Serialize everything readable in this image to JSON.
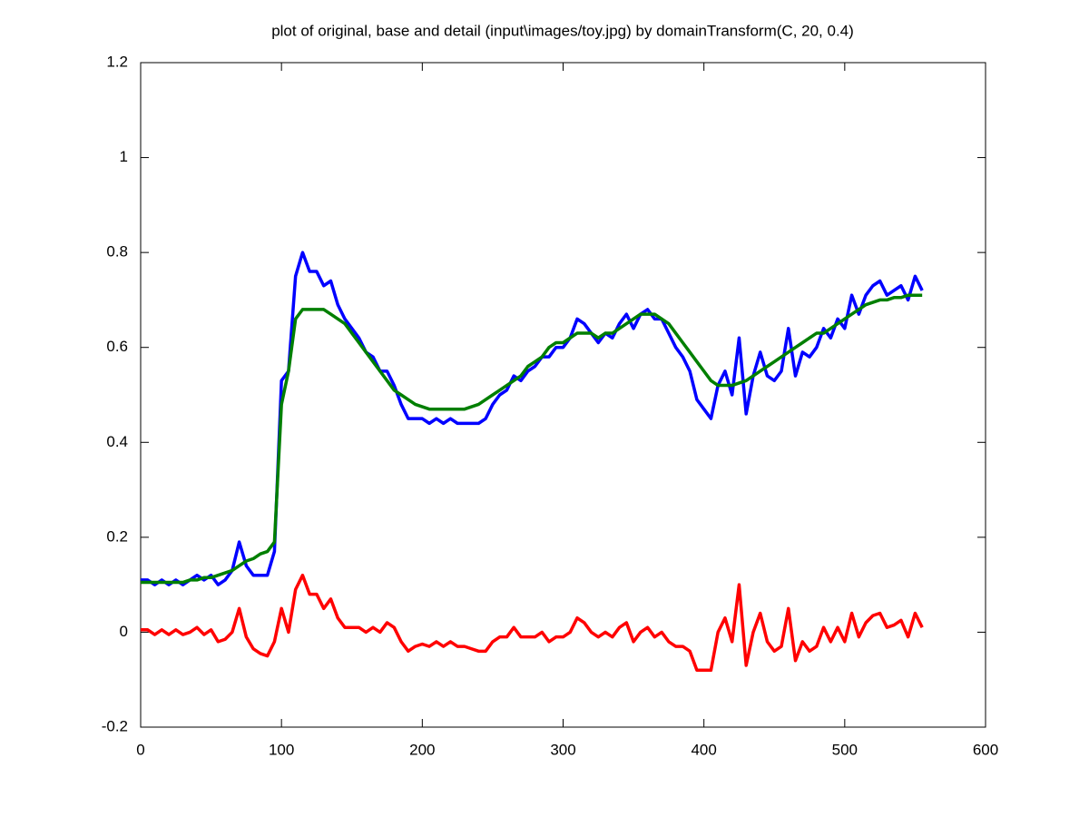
{
  "chart_data": {
    "type": "line",
    "title": "plot of original, base and detail (input\\images/toy.jpg) by domainTransform(C, 20, 0.4)",
    "x": [
      0,
      5,
      10,
      15,
      20,
      25,
      30,
      35,
      40,
      45,
      50,
      55,
      60,
      65,
      70,
      75,
      80,
      85,
      90,
      95,
      100,
      105,
      110,
      115,
      120,
      125,
      130,
      135,
      140,
      145,
      150,
      155,
      160,
      165,
      170,
      175,
      180,
      185,
      190,
      195,
      200,
      205,
      210,
      215,
      220,
      225,
      230,
      235,
      240,
      245,
      250,
      255,
      260,
      265,
      270,
      275,
      280,
      285,
      290,
      295,
      300,
      305,
      310,
      315,
      320,
      325,
      330,
      335,
      340,
      345,
      350,
      355,
      360,
      365,
      370,
      375,
      380,
      385,
      390,
      395,
      400,
      405,
      410,
      415,
      420,
      425,
      430,
      435,
      440,
      445,
      450,
      455,
      460,
      465,
      470,
      475,
      480,
      485,
      490,
      495,
      500,
      505,
      510,
      515,
      520,
      525,
      530,
      535,
      540,
      545,
      550,
      555
    ],
    "series": [
      {
        "color": "#0000ff",
        "values": [
          0.11,
          0.11,
          0.1,
          0.11,
          0.1,
          0.11,
          0.1,
          0.11,
          0.12,
          0.11,
          0.12,
          0.1,
          0.11,
          0.13,
          0.19,
          0.14,
          0.12,
          0.12,
          0.12,
          0.17,
          0.53,
          0.55,
          0.75,
          0.8,
          0.76,
          0.76,
          0.73,
          0.74,
          0.69,
          0.66,
          0.64,
          0.62,
          0.59,
          0.58,
          0.55,
          0.55,
          0.52,
          0.48,
          0.45,
          0.45,
          0.45,
          0.44,
          0.45,
          0.44,
          0.45,
          0.44,
          0.44,
          0.44,
          0.44,
          0.45,
          0.48,
          0.5,
          0.51,
          0.54,
          0.53,
          0.55,
          0.56,
          0.58,
          0.58,
          0.6,
          0.6,
          0.62,
          0.66,
          0.65,
          0.63,
          0.61,
          0.63,
          0.62,
          0.65,
          0.67,
          0.64,
          0.67,
          0.68,
          0.66,
          0.66,
          0.63,
          0.6,
          0.58,
          0.55,
          0.49,
          0.47,
          0.45,
          0.52,
          0.55,
          0.5,
          0.62,
          0.46,
          0.54,
          0.59,
          0.54,
          0.53,
          0.55,
          0.64,
          0.54,
          0.59,
          0.58,
          0.6,
          0.64,
          0.62,
          0.66,
          0.64,
          0.71,
          0.67,
          0.71,
          0.73,
          0.74,
          0.71,
          0.72,
          0.73,
          0.7,
          0.75,
          0.72
        ]
      },
      {
        "color": "#007f00",
        "values": [
          0.105,
          0.105,
          0.105,
          0.105,
          0.105,
          0.105,
          0.105,
          0.11,
          0.11,
          0.115,
          0.115,
          0.12,
          0.125,
          0.13,
          0.14,
          0.15,
          0.155,
          0.165,
          0.17,
          0.19,
          0.48,
          0.55,
          0.66,
          0.68,
          0.68,
          0.68,
          0.68,
          0.67,
          0.66,
          0.65,
          0.63,
          0.61,
          0.59,
          0.57,
          0.55,
          0.53,
          0.51,
          0.5,
          0.49,
          0.48,
          0.475,
          0.47,
          0.47,
          0.47,
          0.47,
          0.47,
          0.47,
          0.475,
          0.48,
          0.49,
          0.5,
          0.51,
          0.52,
          0.53,
          0.54,
          0.56,
          0.57,
          0.58,
          0.6,
          0.61,
          0.61,
          0.62,
          0.63,
          0.63,
          0.63,
          0.62,
          0.63,
          0.63,
          0.64,
          0.65,
          0.66,
          0.67,
          0.67,
          0.67,
          0.66,
          0.65,
          0.63,
          0.61,
          0.59,
          0.57,
          0.55,
          0.53,
          0.52,
          0.52,
          0.52,
          0.525,
          0.53,
          0.54,
          0.55,
          0.56,
          0.57,
          0.58,
          0.59,
          0.6,
          0.61,
          0.62,
          0.63,
          0.63,
          0.64,
          0.65,
          0.66,
          0.67,
          0.68,
          0.69,
          0.695,
          0.7,
          0.7,
          0.705,
          0.705,
          0.71,
          0.71,
          0.71
        ]
      },
      {
        "color": "#ff0000",
        "values": [
          0.005,
          0.005,
          -0.005,
          0.005,
          -0.005,
          0.005,
          -0.005,
          0,
          0.01,
          -0.005,
          0.005,
          -0.02,
          -0.015,
          0,
          0.05,
          -0.01,
          -0.035,
          -0.045,
          -0.05,
          -0.02,
          0.05,
          0,
          0.09,
          0.12,
          0.08,
          0.08,
          0.05,
          0.07,
          0.03,
          0.01,
          0.01,
          0.01,
          0,
          0.01,
          0,
          0.02,
          0.01,
          -0.02,
          -0.04,
          -0.03,
          -0.025,
          -0.03,
          -0.02,
          -0.03,
          -0.02,
          -0.03,
          -0.03,
          -0.035,
          -0.04,
          -0.04,
          -0.02,
          -0.01,
          -0.01,
          0.01,
          -0.01,
          -0.01,
          -0.01,
          0,
          -0.02,
          -0.01,
          -0.01,
          0,
          0.03,
          0.02,
          0,
          -0.01,
          0,
          -0.01,
          0.01,
          0.02,
          -0.02,
          0,
          0.01,
          -0.01,
          0,
          -0.02,
          -0.03,
          -0.03,
          -0.04,
          -0.08,
          -0.08,
          -0.08,
          0,
          0.03,
          -0.02,
          0.1,
          -0.07,
          0,
          0.04,
          -0.02,
          -0.04,
          -0.03,
          0.05,
          -0.06,
          -0.02,
          -0.04,
          -0.03,
          0.01,
          -0.02,
          0.01,
          -0.02,
          0.04,
          -0.01,
          0.02,
          0.035,
          0.04,
          0.01,
          0.015,
          0.025,
          -0.01,
          0.04,
          0.01
        ]
      }
    ],
    "xlim": [
      0,
      600
    ],
    "xticks": [
      0,
      100,
      200,
      300,
      400,
      500,
      600
    ],
    "ylim": [
      -0.2,
      1.2
    ],
    "yticks": [
      -0.2,
      0,
      0.2,
      0.4,
      0.6,
      0.8,
      1,
      1.2
    ],
    "grid": false
  }
}
